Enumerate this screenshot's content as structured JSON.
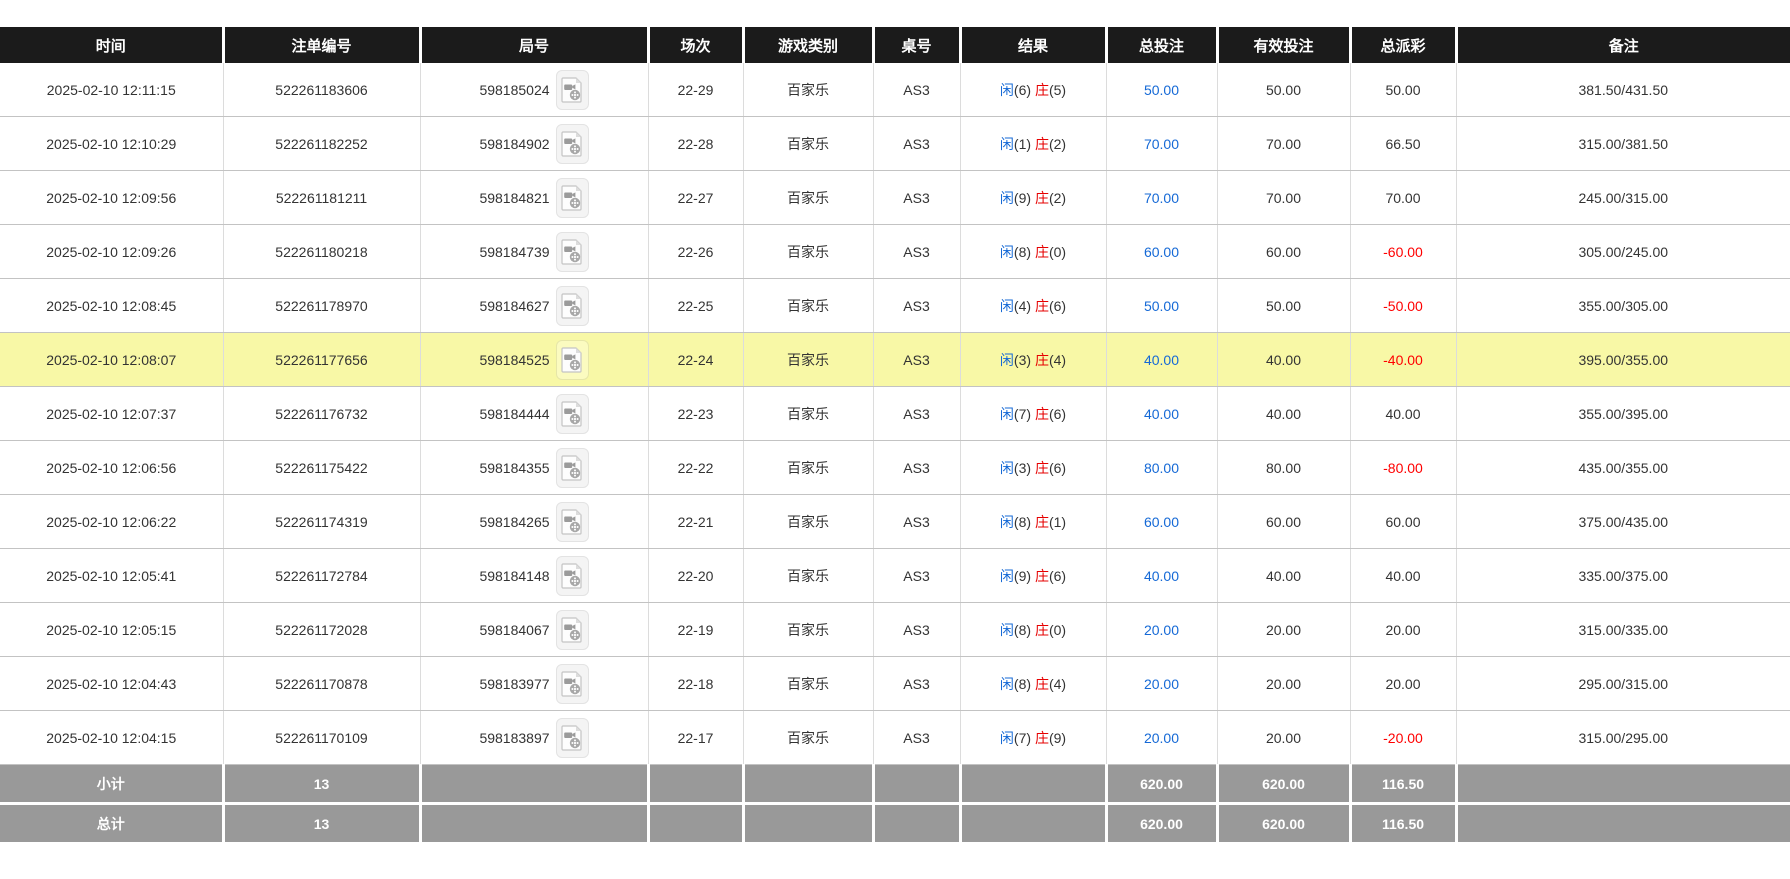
{
  "colors": {
    "header_bg": "#1b1b1b",
    "accent_blue": "#1569d6",
    "accent_red": "#e60000",
    "negative_red": "#ff0000",
    "highlight_row": "#f8f8a6",
    "summary_bg": "#999999"
  },
  "icons": {
    "round_video_icon": "video-replay-icon"
  },
  "table": {
    "headers": [
      "时间",
      "注单编号",
      "局号",
      "场次",
      "游戏类别",
      "桌号",
      "结果",
      "总投注",
      "有效投注",
      "总派彩",
      "备注"
    ],
    "rows": [
      {
        "time": "2025-02-10 12:11:15",
        "order_no": "522261183606",
        "round_no": "598185024",
        "session": "22-29",
        "game_type": "百家乐",
        "table_no": "AS3",
        "player": "闲",
        "player_num": "(6)",
        "banker": "庄",
        "banker_num": "(5)",
        "total_bet": "50.00",
        "valid_bet": "50.00",
        "payout": "50.00",
        "payout_negative": false,
        "remark": "381.50/431.50",
        "highlighted": false
      },
      {
        "time": "2025-02-10 12:10:29",
        "order_no": "522261182252",
        "round_no": "598184902",
        "session": "22-28",
        "game_type": "百家乐",
        "table_no": "AS3",
        "player": "闲",
        "player_num": "(1)",
        "banker": "庄",
        "banker_num": "(2)",
        "total_bet": "70.00",
        "valid_bet": "70.00",
        "payout": "66.50",
        "payout_negative": false,
        "remark": "315.00/381.50",
        "highlighted": false
      },
      {
        "time": "2025-02-10 12:09:56",
        "order_no": "522261181211",
        "round_no": "598184821",
        "session": "22-27",
        "game_type": "百家乐",
        "table_no": "AS3",
        "player": "闲",
        "player_num": "(9)",
        "banker": "庄",
        "banker_num": "(2)",
        "total_bet": "70.00",
        "valid_bet": "70.00",
        "payout": "70.00",
        "payout_negative": false,
        "remark": "245.00/315.00",
        "highlighted": false
      },
      {
        "time": "2025-02-10 12:09:26",
        "order_no": "522261180218",
        "round_no": "598184739",
        "session": "22-26",
        "game_type": "百家乐",
        "table_no": "AS3",
        "player": "闲",
        "player_num": "(8)",
        "banker": "庄",
        "banker_num": "(0)",
        "total_bet": "60.00",
        "valid_bet": "60.00",
        "payout": "-60.00",
        "payout_negative": true,
        "remark": "305.00/245.00",
        "highlighted": false
      },
      {
        "time": "2025-02-10 12:08:45",
        "order_no": "522261178970",
        "round_no": "598184627",
        "session": "22-25",
        "game_type": "百家乐",
        "table_no": "AS3",
        "player": "闲",
        "player_num": "(4)",
        "banker": "庄",
        "banker_num": "(6)",
        "total_bet": "50.00",
        "valid_bet": "50.00",
        "payout": "-50.00",
        "payout_negative": true,
        "remark": "355.00/305.00",
        "highlighted": false
      },
      {
        "time": "2025-02-10 12:08:07",
        "order_no": "522261177656",
        "round_no": "598184525",
        "session": "22-24",
        "game_type": "百家乐",
        "table_no": "AS3",
        "player": "闲",
        "player_num": "(3)",
        "banker": "庄",
        "banker_num": "(4)",
        "total_bet": "40.00",
        "valid_bet": "40.00",
        "payout": "-40.00",
        "payout_negative": true,
        "remark": "395.00/355.00",
        "highlighted": true
      },
      {
        "time": "2025-02-10 12:07:37",
        "order_no": "522261176732",
        "round_no": "598184444",
        "session": "22-23",
        "game_type": "百家乐",
        "table_no": "AS3",
        "player": "闲",
        "player_num": "(7)",
        "banker": "庄",
        "banker_num": "(6)",
        "total_bet": "40.00",
        "valid_bet": "40.00",
        "payout": "40.00",
        "payout_negative": false,
        "remark": "355.00/395.00",
        "highlighted": false
      },
      {
        "time": "2025-02-10 12:06:56",
        "order_no": "522261175422",
        "round_no": "598184355",
        "session": "22-22",
        "game_type": "百家乐",
        "table_no": "AS3",
        "player": "闲",
        "player_num": "(3)",
        "banker": "庄",
        "banker_num": "(6)",
        "total_bet": "80.00",
        "valid_bet": "80.00",
        "payout": "-80.00",
        "payout_negative": true,
        "remark": "435.00/355.00",
        "highlighted": false
      },
      {
        "time": "2025-02-10 12:06:22",
        "order_no": "522261174319",
        "round_no": "598184265",
        "session": "22-21",
        "game_type": "百家乐",
        "table_no": "AS3",
        "player": "闲",
        "player_num": "(8)",
        "banker": "庄",
        "banker_num": "(1)",
        "total_bet": "60.00",
        "valid_bet": "60.00",
        "payout": "60.00",
        "payout_negative": false,
        "remark": "375.00/435.00",
        "highlighted": false
      },
      {
        "time": "2025-02-10 12:05:41",
        "order_no": "522261172784",
        "round_no": "598184148",
        "session": "22-20",
        "game_type": "百家乐",
        "table_no": "AS3",
        "player": "闲",
        "player_num": "(9)",
        "banker": "庄",
        "banker_num": "(6)",
        "total_bet": "40.00",
        "valid_bet": "40.00",
        "payout": "40.00",
        "payout_negative": false,
        "remark": "335.00/375.00",
        "highlighted": false
      },
      {
        "time": "2025-02-10 12:05:15",
        "order_no": "522261172028",
        "round_no": "598184067",
        "session": "22-19",
        "game_type": "百家乐",
        "table_no": "AS3",
        "player": "闲",
        "player_num": "(8)",
        "banker": "庄",
        "banker_num": "(0)",
        "total_bet": "20.00",
        "valid_bet": "20.00",
        "payout": "20.00",
        "payout_negative": false,
        "remark": "315.00/335.00",
        "highlighted": false
      },
      {
        "time": "2025-02-10 12:04:43",
        "order_no": "522261170878",
        "round_no": "598183977",
        "session": "22-18",
        "game_type": "百家乐",
        "table_no": "AS3",
        "player": "闲",
        "player_num": "(8)",
        "banker": "庄",
        "banker_num": "(4)",
        "total_bet": "20.00",
        "valid_bet": "20.00",
        "payout": "20.00",
        "payout_negative": false,
        "remark": "295.00/315.00",
        "highlighted": false
      },
      {
        "time": "2025-02-10 12:04:15",
        "order_no": "522261170109",
        "round_no": "598183897",
        "session": "22-17",
        "game_type": "百家乐",
        "table_no": "AS3",
        "player": "闲",
        "player_num": "(7)",
        "banker": "庄",
        "banker_num": "(9)",
        "total_bet": "20.00",
        "valid_bet": "20.00",
        "payout": "-20.00",
        "payout_negative": true,
        "remark": "315.00/295.00",
        "highlighted": false
      }
    ],
    "footer": [
      {
        "label": "小计",
        "count": "13",
        "total_bet": "620.00",
        "valid_bet": "620.00",
        "payout": "116.50"
      },
      {
        "label": "总计",
        "count": "13",
        "total_bet": "620.00",
        "valid_bet": "620.00",
        "payout": "116.50"
      }
    ]
  }
}
